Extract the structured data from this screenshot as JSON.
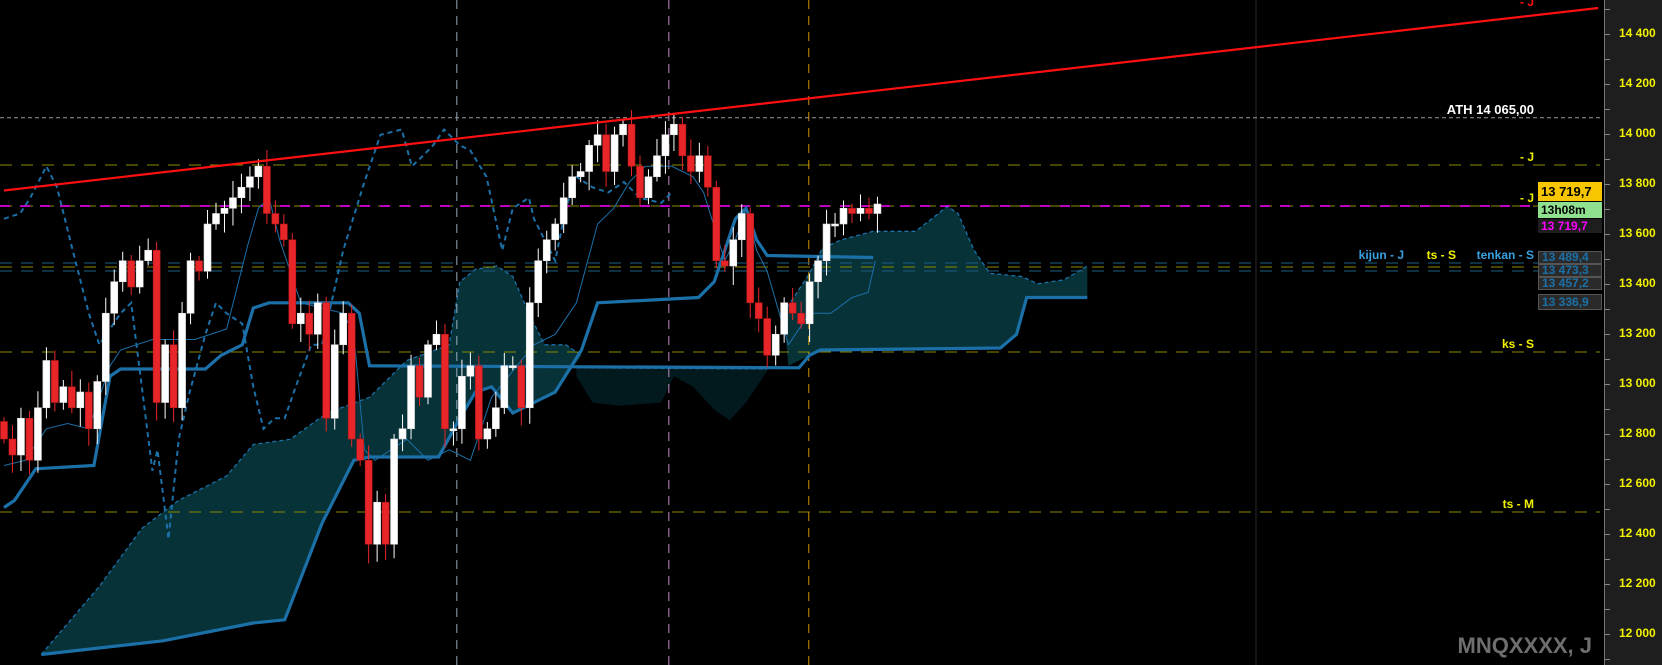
{
  "chart_data": {
    "type": "candlestick",
    "symbol_label": "MNQXXXX, J",
    "ylim": [
      11880,
      14530
    ],
    "y_ticks": [
      "14 400",
      "14 200",
      "14 000",
      "13 800",
      "13 600",
      "13 400",
      "13 200",
      "13 000",
      "12 800",
      "12 600",
      "12 400",
      "12 200",
      "12 000"
    ],
    "y_tick_values": [
      14400,
      14200,
      14000,
      13800,
      13600,
      13400,
      13200,
      13000,
      12800,
      12600,
      12400,
      12200,
      12000
    ],
    "colors": {
      "up": "#ffffff",
      "down": "#e8262a",
      "ichimoku": "#1c70a8",
      "cloud": "#063238",
      "cloud_dark": "#02191d",
      "trendline": "#ff1010",
      "current": "#ff00ff",
      "level": "#8a8a00"
    },
    "first_open": 12850,
    "closes": [
      12780,
      12716,
      12863,
      12695,
      12905,
      13094,
      12926,
      12989,
      12905,
      12968,
      12821,
      13010,
      13283,
      13409,
      13493,
      13388,
      13493,
      13535,
      12926,
      13157,
      12905,
      13283,
      13493,
      13451,
      13640,
      13682,
      13703,
      13745,
      13787,
      13829,
      13871,
      13682,
      13640,
      13577,
      13241,
      13283,
      13199,
      13325,
      12863,
      13157,
      13283,
      12780,
      12695,
      12359,
      12527,
      12359,
      12780,
      12821,
      13073,
      12947,
      13157,
      13199,
      12821,
      12821,
      13031,
      13073,
      12780,
      12821,
      12905,
      13073,
      13073,
      12905,
      13325,
      13493,
      13577,
      13640,
      13745,
      13829,
      13850,
      13955,
      13997,
      13850,
      13997,
      14039,
      13871,
      13745,
      13829,
      13913,
      13997,
      14039,
      13913,
      13850,
      13913,
      13787,
      13493,
      13472,
      13577,
      13682,
      13325,
      13262,
      13115,
      13199,
      13325,
      13283,
      13241,
      13409,
      13493,
      13640,
      13640,
      13703,
      13682,
      13703,
      13682,
      13720
    ],
    "ichimoku": {
      "kumo_line": [
        [
          0,
          12506
        ],
        [
          1.25,
          12535
        ],
        [
          3.75,
          12661
        ],
        [
          10.6,
          12674
        ],
        [
          12.5,
          13031
        ],
        [
          13.75,
          13060
        ],
        [
          23.75,
          13060
        ],
        [
          25.6,
          13115
        ],
        [
          28.1,
          13157
        ],
        [
          29.4,
          13304
        ],
        [
          31.25,
          13325
        ],
        [
          40.6,
          13325
        ],
        [
          41.9,
          13283
        ],
        [
          43.1,
          13073
        ],
        [
          93.75,
          13065
        ],
        [
          95,
          13115
        ],
        [
          96.25,
          13136
        ],
        [
          117.5,
          13144
        ],
        [
          119.4,
          13199
        ],
        [
          120.6,
          13346
        ],
        [
          127.75,
          13346
        ]
      ],
      "kijun": [
        [
          4.4,
          11918
        ],
        [
          18.75,
          11973
        ],
        [
          29.4,
          12044
        ],
        [
          33.1,
          12057
        ],
        [
          37.5,
          12443
        ],
        [
          41.25,
          12695
        ],
        [
          43.1,
          12708
        ],
        [
          51.25,
          12708
        ],
        [
          53.75,
          12863
        ],
        [
          55.6,
          12968
        ],
        [
          57.5,
          12989
        ],
        [
          60,
          12884
        ],
        [
          62.5,
          12926
        ],
        [
          65,
          12968
        ],
        [
          68.1,
          13136
        ],
        [
          70,
          13325
        ],
        [
          81.9,
          13346
        ],
        [
          83.75,
          13409
        ],
        [
          86.25,
          13661
        ],
        [
          87.5,
          13703
        ],
        [
          88.75,
          13577
        ],
        [
          90,
          13514
        ],
        [
          102.5,
          13506
        ]
      ],
      "tenkan": [
        [
          0,
          12674
        ],
        [
          2.5,
          12695
        ],
        [
          5,
          12821
        ],
        [
          7.5,
          12842
        ],
        [
          10,
          12821
        ],
        [
          12.5,
          13073
        ],
        [
          13.75,
          13136
        ],
        [
          17.5,
          13178
        ],
        [
          22.5,
          13178
        ],
        [
          26.25,
          13220
        ],
        [
          28.75,
          13556
        ],
        [
          30,
          13703
        ],
        [
          31.25,
          13745
        ],
        [
          32.5,
          13577
        ],
        [
          35,
          13325
        ],
        [
          37.5,
          13304
        ],
        [
          40,
          13283
        ],
        [
          41.25,
          13199
        ],
        [
          42.5,
          12737
        ],
        [
          43.75,
          12695
        ],
        [
          47.5,
          12779
        ],
        [
          50,
          12695
        ],
        [
          52.5,
          12737
        ],
        [
          55,
          12695
        ],
        [
          57.5,
          12947
        ],
        [
          60,
          13052
        ],
        [
          62.5,
          13157
        ],
        [
          65,
          13199
        ],
        [
          67.5,
          13325
        ],
        [
          70,
          13640
        ],
        [
          71.9,
          13703
        ],
        [
          73.75,
          13808
        ],
        [
          75.6,
          13871
        ],
        [
          78.75,
          13871
        ],
        [
          81.25,
          13829
        ],
        [
          82.5,
          13766
        ],
        [
          85,
          13493
        ],
        [
          86.25,
          13577
        ],
        [
          87.5,
          13703
        ],
        [
          88.75,
          13535
        ],
        [
          90,
          13451
        ],
        [
          92.5,
          13157
        ],
        [
          95,
          13283
        ],
        [
          97.5,
          13283
        ],
        [
          100,
          13346
        ],
        [
          101.9,
          13367
        ],
        [
          102.75,
          13493
        ]
      ],
      "chikou": [
        [
          0,
          13661
        ],
        [
          1.9,
          13682
        ],
        [
          3.1,
          13745
        ],
        [
          5,
          13871
        ],
        [
          6.25,
          13787
        ],
        [
          8.1,
          13535
        ],
        [
          10,
          13283
        ],
        [
          11.25,
          13157
        ],
        [
          13.75,
          13283
        ],
        [
          15,
          13325
        ],
        [
          16.25,
          12989
        ],
        [
          17.5,
          12653
        ],
        [
          18.1,
          12737
        ],
        [
          19.4,
          12380
        ],
        [
          20.6,
          12779
        ],
        [
          21.9,
          12968
        ],
        [
          23.75,
          13199
        ],
        [
          25,
          13325
        ],
        [
          26.25,
          13283
        ],
        [
          28.1,
          13241
        ],
        [
          29.4,
          12989
        ],
        [
          30.6,
          12821
        ],
        [
          31.9,
          12863
        ],
        [
          33.1,
          12863
        ],
        [
          34.4,
          12989
        ],
        [
          36.25,
          13157
        ],
        [
          37.5,
          13157
        ],
        [
          40,
          13535
        ],
        [
          42.5,
          13808
        ],
        [
          44.4,
          13997
        ],
        [
          46.9,
          14018
        ],
        [
          48.1,
          13871
        ],
        [
          49.4,
          13913
        ],
        [
          50.6,
          13955
        ],
        [
          51.9,
          14018
        ],
        [
          53.75,
          13955
        ],
        [
          55,
          13934
        ],
        [
          56.9,
          13829
        ],
        [
          58.75,
          13535
        ],
        [
          60,
          13703
        ],
        [
          61.9,
          13745
        ],
        [
          62.5,
          13661
        ],
        [
          63.75,
          13577
        ],
        [
          65,
          13493
        ],
        [
          66.25,
          13703
        ],
        [
          67.5,
          13829
        ],
        [
          69.4,
          13787
        ],
        [
          71.25,
          13766
        ],
        [
          73.1,
          13808
        ],
        [
          75,
          13745
        ],
        [
          77.5,
          13724
        ],
        [
          78.75,
          13766
        ]
      ],
      "clouds": [
        {
          "tone": "cloud",
          "top": [
            [
              4.4,
              11918
            ],
            [
              11.25,
              12191
            ],
            [
              16.25,
              12422
            ],
            [
              20.6,
              12535
            ],
            [
              26.25,
              12632
            ],
            [
              29.4,
              12758
            ],
            [
              33.75,
              12779
            ],
            [
              38.1,
              12884
            ],
            [
              43.1,
              12947
            ],
            [
              47.5,
              13094
            ],
            [
              52.5,
              13157
            ],
            [
              53.75,
              13409
            ],
            [
              55.6,
              13459
            ],
            [
              58.1,
              13472
            ],
            [
              60,
              13430
            ],
            [
              61.9,
              13283
            ],
            [
              63.75,
              13157
            ],
            [
              66.25,
              13157
            ],
            [
              68.1,
              13115
            ]
          ],
          "bottom": [
            [
              4.4,
              11918
            ],
            [
              18.75,
              11973
            ],
            [
              29.4,
              12044
            ],
            [
              33.1,
              12057
            ],
            [
              37.5,
              12443
            ],
            [
              41.25,
              12695
            ],
            [
              43.1,
              12708
            ],
            [
              51.25,
              12708
            ],
            [
              53.75,
              12863
            ],
            [
              55.6,
              12968
            ],
            [
              57.5,
              12989
            ],
            [
              60,
              12884
            ],
            [
              62.5,
              12926
            ],
            [
              65,
              12968
            ],
            [
              68.1,
              13115
            ]
          ]
        },
        {
          "tone": "cloud_dark",
          "top": [
            [
              67.5,
              13065
            ],
            [
              90,
              13060
            ]
          ],
          "bottom": [
            [
              67.5,
              13031
            ],
            [
              69.4,
              12926
            ],
            [
              72.5,
              12913
            ],
            [
              77.5,
              12926
            ],
            [
              79,
              13031
            ],
            [
              81.25,
              12989
            ],
            [
              83.75,
              12897
            ],
            [
              85.6,
              12855
            ],
            [
              87.5,
              12926
            ],
            [
              90,
              13052
            ]
          ]
        },
        {
          "tone": "cloud",
          "top": [
            [
              91.9,
              13283
            ],
            [
              95,
              13443
            ],
            [
              96.5,
              13543
            ],
            [
              98.75,
              13577
            ],
            [
              102.5,
              13611
            ],
            [
              107.5,
              13611
            ],
            [
              109.4,
              13661
            ],
            [
              111.25,
              13711
            ],
            [
              112.5,
              13682
            ],
            [
              114.4,
              13535
            ],
            [
              116.25,
              13443
            ],
            [
              120,
              13430
            ],
            [
              121.9,
              13401
            ],
            [
              125,
              13417
            ],
            [
              127.75,
              13472
            ]
          ],
          "bottom": [
            [
              92.5,
              13073
            ],
            [
              95,
              13115
            ],
            [
              96.25,
              13136
            ],
            [
              117.5,
              13144
            ],
            [
              119.4,
              13199
            ],
            [
              120.6,
              13346
            ],
            [
              127.75,
              13346
            ]
          ]
        }
      ]
    },
    "trendline": [
      [
        0,
        13774
      ],
      [
        188,
        14504
      ]
    ],
    "trendline_label": "- J",
    "levels": [
      {
        "price": 14065,
        "color": "#9a9a9a",
        "label": "ATH 14 065,00",
        "label_color": "#ffffff"
      },
      {
        "price": 13876,
        "color": "#8a8a00",
        "label": "- J",
        "label_color": "#f2f200"
      },
      {
        "price": 13712,
        "color": "#8a8a00",
        "label": "- J",
        "label_color": "#f2f200"
      },
      {
        "price": 13712,
        "color": "#ff00ff",
        "label": "",
        "label_color": "#ff00ff"
      },
      {
        "price": 13484,
        "color": "#1c5f86",
        "label": "kijun - J",
        "label_color": "#3aa0e0"
      },
      {
        "price": 13468,
        "color": "#8a8a00",
        "label": "ts - S",
        "label_color": "#f2f200"
      },
      {
        "price": 13452,
        "color": "#1c5f86",
        "label": "tenkan - S",
        "label_color": "#3aa0e0"
      },
      {
        "price": 13128,
        "color": "#8a8a00",
        "label": "ks - S",
        "label_color": "#f2f200"
      },
      {
        "price": 12488,
        "color": "#8a8a00",
        "label": "ts - M",
        "label_color": "#f2f200"
      }
    ],
    "vertical_markers": [
      {
        "index": 53.4,
        "color": "#b8c8d8"
      },
      {
        "index": 78.4,
        "color": "#e8a0e8"
      },
      {
        "index": 94.9,
        "color": "#f0a800"
      }
    ],
    "price_boxes": [
      {
        "text": "13 719,7",
        "bg": "#f7c600",
        "fg": "#000000"
      },
      {
        "text": "13h08m",
        "bg": "#8fe08f",
        "fg": "#000000"
      },
      {
        "text": "13 719,7",
        "bg": "#1e1e1e",
        "fg": "#ff00ff"
      },
      {
        "text": "13 489,4",
        "bg": "#2a2a2a",
        "fg": "#1c70a8"
      },
      {
        "text": "13 473,3",
        "bg": "#2a2a2a",
        "fg": "#1c70a8"
      },
      {
        "text": "13 457,2",
        "bg": "#2a2a2a",
        "fg": "#1c70a8"
      },
      {
        "text": "13 336,9",
        "bg": "#2a2a2a",
        "fg": "#1c70a8"
      }
    ]
  }
}
